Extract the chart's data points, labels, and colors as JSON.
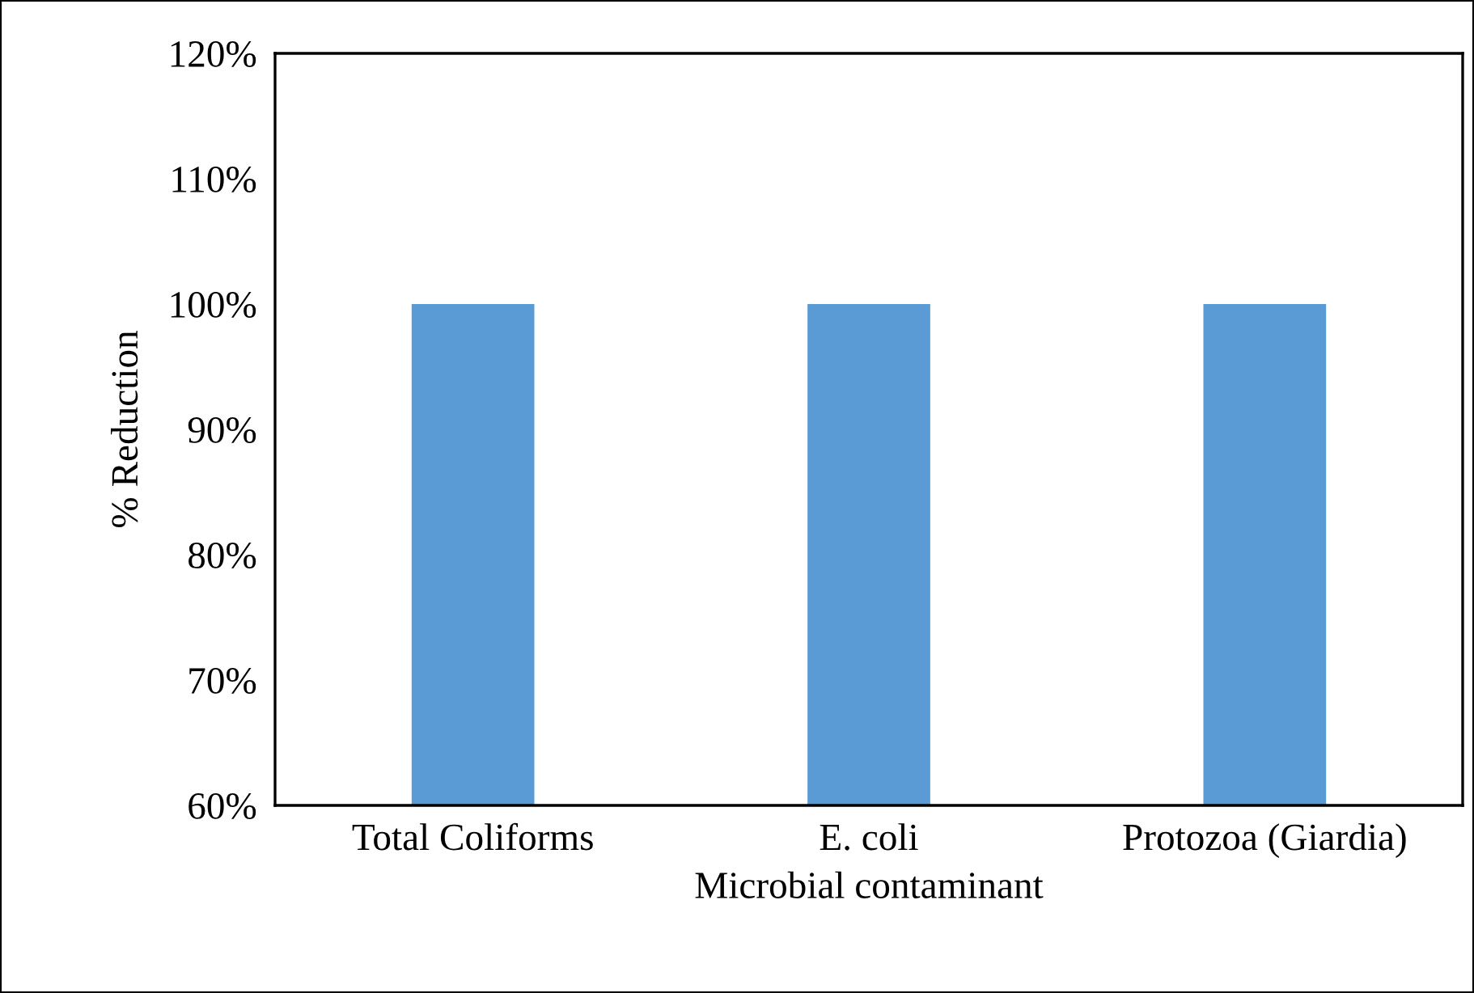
{
  "chart_data": {
    "type": "bar",
    "xlabel": "Microbial contaminant",
    "ylabel": "% Reduction",
    "categories": [
      "Total Coliforms",
      "E. coli",
      "Protozoa (Giardia)"
    ],
    "values": [
      100,
      100,
      100
    ],
    "color": "#5b9bd5",
    "ylim": [
      60,
      120
    ],
    "yticks": [
      {
        "value": 60,
        "label": "60%"
      },
      {
        "value": 70,
        "label": "70%"
      },
      {
        "value": 80,
        "label": "80%"
      },
      {
        "value": 90,
        "label": "90%"
      },
      {
        "value": 100,
        "label": "100%"
      },
      {
        "value": 110,
        "label": "110%"
      },
      {
        "value": 120,
        "label": "120%"
      }
    ],
    "grid": false,
    "legend": false
  }
}
